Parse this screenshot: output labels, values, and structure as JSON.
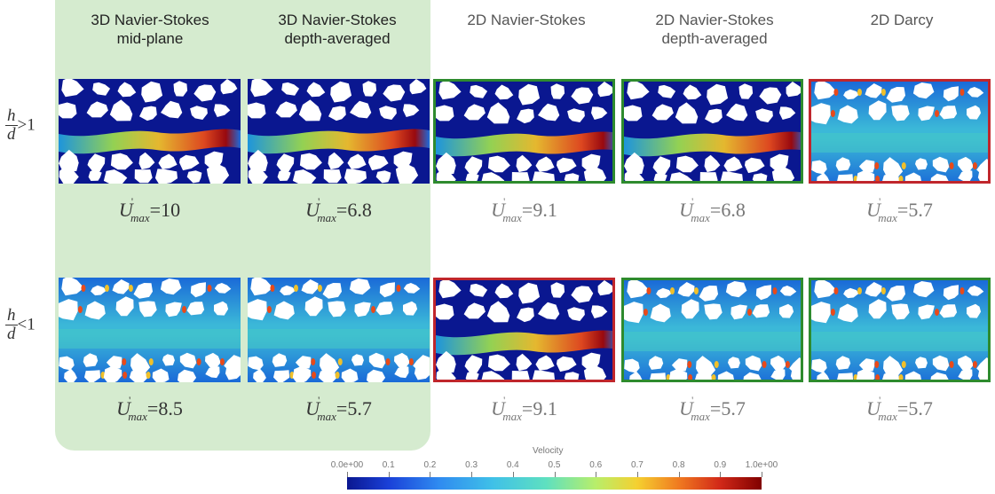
{
  "columns": [
    {
      "title": "3D Navier-Stokes\nmid-plane"
    },
    {
      "title": "3D Navier-Stokes\ndepth-averaged"
    },
    {
      "title": "2D Navier-Stokes"
    },
    {
      "title": "2D Navier-Stokes\ndepth-averaged"
    },
    {
      "title": "2D Darcy"
    }
  ],
  "rows": [
    {
      "h": "h",
      "d": "d",
      "relation": ">1",
      "values": [
        "=10",
        "=6.8",
        "=9.1",
        "=6.8",
        "=5.7"
      ],
      "frames": [
        "none",
        "none",
        "green",
        "green",
        "red"
      ],
      "channel": [
        true,
        true,
        true,
        true,
        false
      ]
    },
    {
      "h": "h",
      "d": "d",
      "relation": "<1",
      "values": [
        "=8.5",
        "=5.7",
        "=9.1",
        "=5.7",
        "=5.7"
      ],
      "frames": [
        "none",
        "none",
        "red",
        "green",
        "green"
      ],
      "channel": [
        false,
        false,
        true,
        false,
        false
      ]
    }
  ],
  "umax": {
    "symbol": "U",
    "prime": "'",
    "sub": "max"
  },
  "colorbar": {
    "title": "Velocity",
    "ticks": [
      "0.0e+00",
      "0.1",
      "0.2",
      "0.3",
      "0.4",
      "0.5",
      "0.6",
      "0.7",
      "0.8",
      "0.9",
      "1.0e+00"
    ]
  },
  "colors": {
    "highlight": "#d5ebcf",
    "green_frame": "#2e8b2e",
    "red_frame": "#c0262c",
    "field_base": "#0a1790"
  }
}
